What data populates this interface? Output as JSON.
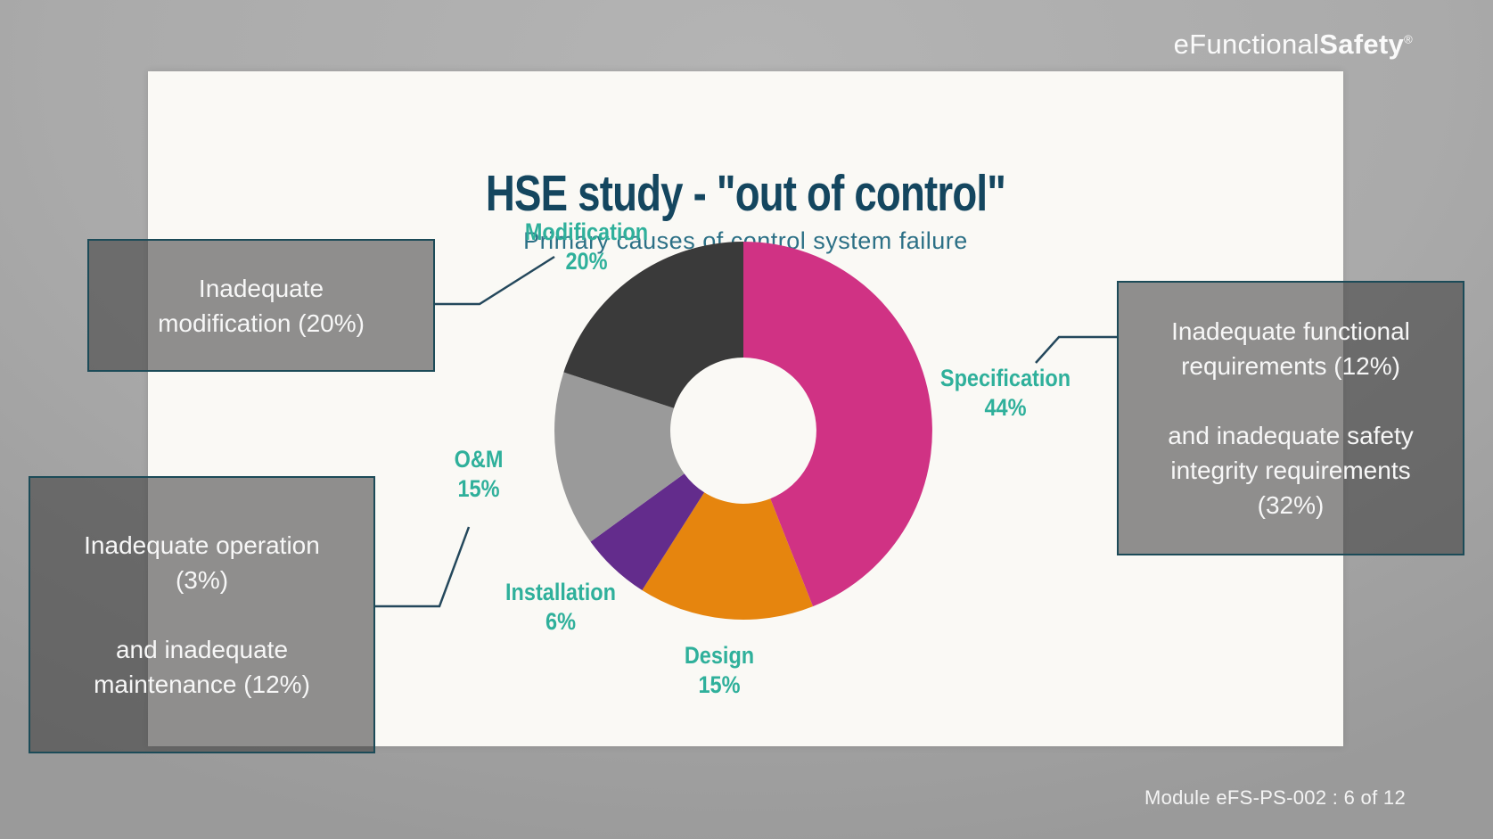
{
  "brand": {
    "logo_light": "eFunctional",
    "logo_bold": "Safety",
    "logo_reg_mark": "®"
  },
  "slide": {
    "title": "HSE study - \"out of control\"",
    "subtitle": "Primary causes of control system failure"
  },
  "chart_data": {
    "type": "pie",
    "variant": "donut",
    "title": "HSE study - \"out of control\"",
    "subtitle": "Primary causes of control system failure",
    "start_angle_deg": 0,
    "direction": "clockwise",
    "label_color": "#2fb09b",
    "segments": [
      {
        "label": "Specification",
        "value": 44,
        "pct_label": "44%",
        "color": "#d03284"
      },
      {
        "label": "Design",
        "value": 15,
        "pct_label": "15%",
        "color": "#e6850e"
      },
      {
        "label": "Installation",
        "value": 6,
        "pct_label": "6%",
        "color": "#632c8c"
      },
      {
        "label": "O&M",
        "value": 15,
        "pct_label": "15%",
        "color": "#9a9a9a"
      },
      {
        "label": "Modification",
        "value": 20,
        "pct_label": "20%",
        "color": "#3a3a3a"
      }
    ]
  },
  "callouts": {
    "modification": {
      "line1": "Inadequate",
      "line2": "modification (20%)"
    },
    "operation_maintenance": {
      "line1": "Inadequate operation",
      "line2": "(3%)",
      "line3": "and inadequate",
      "line4": "maintenance (12%)"
    },
    "requirements": {
      "line1": "Inadequate functional",
      "line2": "requirements (12%)",
      "line3": "and inadequate safety",
      "line4": "integrity requirements",
      "line5": "(32%)"
    }
  },
  "footer": {
    "module_ref": "Module eFS-PS-002 : 6 of 12"
  }
}
